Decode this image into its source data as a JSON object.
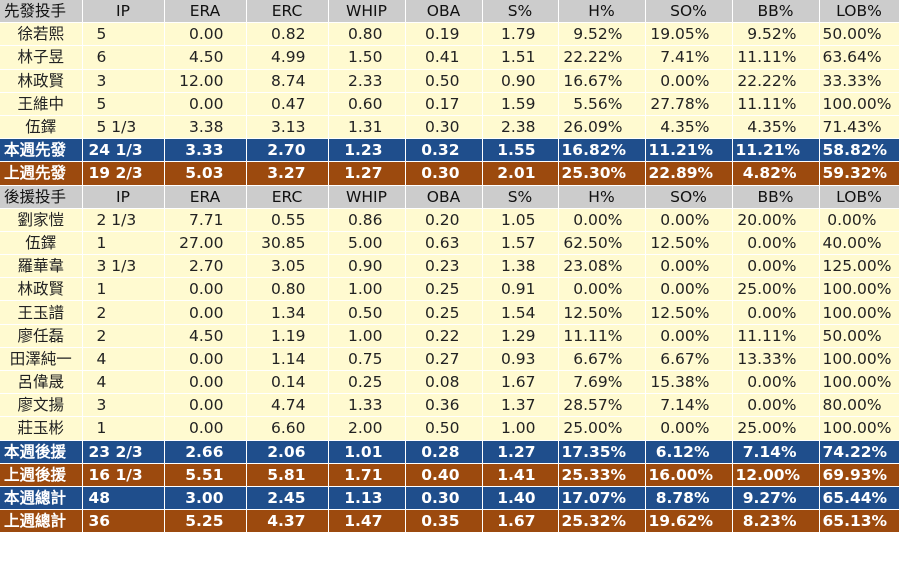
{
  "colors": {
    "header": "#cccccc",
    "player_row": "#fffad0",
    "this_week": "#1f4e8c",
    "last_week": "#9c4a0e"
  },
  "columns": [
    "IP",
    "ERA",
    "ERC",
    "WHIP",
    "OBA",
    "S%",
    "H%",
    "SO%",
    "BB%",
    "LOB%"
  ],
  "sections": [
    {
      "header": "先發投手",
      "players": [
        {
          "name": "徐若熙",
          "values": [
            "5",
            "0.00",
            "0.82",
            "0.80",
            "0.19",
            "1.79",
            "9.52%",
            "19.05%",
            "9.52%",
            "50.00%"
          ]
        },
        {
          "name": "林子昱",
          "values": [
            "6",
            "4.50",
            "4.99",
            "1.50",
            "0.41",
            "1.51",
            "22.22%",
            "7.41%",
            "11.11%",
            "63.64%"
          ]
        },
        {
          "name": "林政賢",
          "values": [
            "3",
            "12.00",
            "8.74",
            "2.33",
            "0.50",
            "0.90",
            "16.67%",
            "0.00%",
            "22.22%",
            "33.33%"
          ]
        },
        {
          "name": "王維中",
          "values": [
            "5",
            "0.00",
            "0.47",
            "0.60",
            "0.17",
            "1.59",
            "5.56%",
            "27.78%",
            "11.11%",
            "100.00%"
          ]
        },
        {
          "name": "伍鐸",
          "values": [
            "5 1/3",
            "3.38",
            "3.13",
            "1.31",
            "0.30",
            "2.38",
            "26.09%",
            "4.35%",
            "4.35%",
            "71.43%"
          ]
        }
      ],
      "totals": [
        {
          "label": "本週先發",
          "style": "blue",
          "values": [
            "24 1/3",
            "3.33",
            "2.70",
            "1.23",
            "0.32",
            "1.55",
            "16.82%",
            "11.21%",
            "11.21%",
            "58.82%"
          ]
        },
        {
          "label": "上週先發",
          "style": "brown",
          "values": [
            "19 2/3",
            "5.03",
            "3.27",
            "1.27",
            "0.30",
            "2.01",
            "25.30%",
            "22.89%",
            "4.82%",
            "59.32%"
          ]
        }
      ]
    },
    {
      "header": "後援投手",
      "players": [
        {
          "name": "劉家愷",
          "values": [
            "2 1/3",
            "7.71",
            "0.55",
            "0.86",
            "0.20",
            "1.05",
            "0.00%",
            "0.00%",
            "20.00%",
            "0.00%"
          ]
        },
        {
          "name": "伍鐸",
          "values": [
            "1",
            "27.00",
            "30.85",
            "5.00",
            "0.63",
            "1.57",
            "62.50%",
            "12.50%",
            "0.00%",
            "40.00%"
          ]
        },
        {
          "name": "羅華韋",
          "values": [
            "3 1/3",
            "2.70",
            "3.05",
            "0.90",
            "0.23",
            "1.38",
            "23.08%",
            "0.00%",
            "0.00%",
            "125.00%"
          ]
        },
        {
          "name": "林政賢",
          "values": [
            "1",
            "0.00",
            "0.80",
            "1.00",
            "0.25",
            "0.91",
            "0.00%",
            "0.00%",
            "25.00%",
            "100.00%"
          ]
        },
        {
          "name": "王玉譜",
          "values": [
            "2",
            "0.00",
            "1.34",
            "0.50",
            "0.25",
            "1.54",
            "12.50%",
            "12.50%",
            "0.00%",
            "100.00%"
          ]
        },
        {
          "name": "廖任磊",
          "values": [
            "2",
            "4.50",
            "1.19",
            "1.00",
            "0.22",
            "1.29",
            "11.11%",
            "0.00%",
            "11.11%",
            "50.00%"
          ]
        },
        {
          "name": "田澤純一",
          "values": [
            "4",
            "0.00",
            "1.14",
            "0.75",
            "0.27",
            "0.93",
            "6.67%",
            "6.67%",
            "13.33%",
            "100.00%"
          ]
        },
        {
          "name": "呂偉晟",
          "values": [
            "4",
            "0.00",
            "0.14",
            "0.25",
            "0.08",
            "1.67",
            "7.69%",
            "15.38%",
            "0.00%",
            "100.00%"
          ]
        },
        {
          "name": "廖文揚",
          "values": [
            "3",
            "0.00",
            "4.74",
            "1.33",
            "0.36",
            "1.37",
            "28.57%",
            "7.14%",
            "0.00%",
            "80.00%"
          ]
        },
        {
          "name": "莊玉彬",
          "values": [
            "1",
            "0.00",
            "6.60",
            "2.00",
            "0.50",
            "1.00",
            "25.00%",
            "0.00%",
            "25.00%",
            "100.00%"
          ]
        }
      ],
      "totals": [
        {
          "label": "本週後援",
          "style": "blue",
          "values": [
            "23 2/3",
            "2.66",
            "2.06",
            "1.01",
            "0.28",
            "1.27",
            "17.35%",
            "6.12%",
            "7.14%",
            "74.22%"
          ]
        },
        {
          "label": "上週後援",
          "style": "brown",
          "values": [
            "16 1/3",
            "5.51",
            "5.81",
            "1.71",
            "0.40",
            "1.41",
            "25.33%",
            "16.00%",
            "12.00%",
            "69.93%"
          ]
        },
        {
          "label": "本週總計",
          "style": "blue",
          "values": [
            "48",
            "3.00",
            "2.45",
            "1.13",
            "0.30",
            "1.40",
            "17.07%",
            "8.78%",
            "9.27%",
            "65.44%"
          ]
        },
        {
          "label": "上週總計",
          "style": "brown",
          "values": [
            "36",
            "5.25",
            "4.37",
            "1.47",
            "0.35",
            "1.67",
            "25.32%",
            "19.62%",
            "8.23%",
            "65.13%"
          ]
        }
      ]
    }
  ]
}
